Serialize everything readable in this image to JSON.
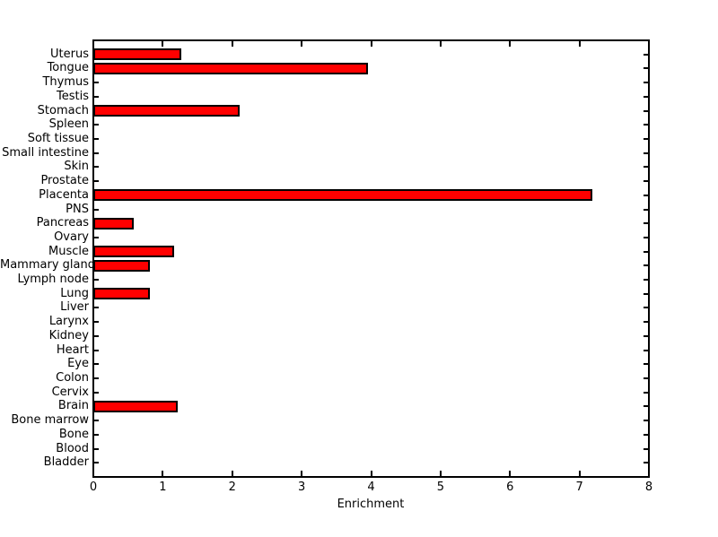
{
  "figure": {
    "background": "#FFFFFF"
  },
  "chart_data": {
    "type": "bar",
    "orientation": "horizontal",
    "title": "",
    "xlabel": "Enrichment",
    "ylabel": "",
    "categories": [
      "Uterus",
      "Tongue",
      "Thymus",
      "Testis",
      "Stomach",
      "Spleen",
      "Soft tissue",
      "Small intestine",
      "Skin",
      "Prostate",
      "Placenta",
      "PNS",
      "Pancreas",
      "Ovary",
      "Muscle",
      "Mammary gland",
      "Lymph node",
      "Lung",
      "Liver",
      "Larynx",
      "Kidney",
      "Heart",
      "Eye",
      "Colon",
      "Cervix",
      "Brain",
      "Bone marrow",
      "Bone",
      "Blood",
      "Bladder"
    ],
    "values": [
      1.27,
      3.95,
      0,
      0,
      2.11,
      0,
      0,
      0,
      0,
      0,
      7.18,
      0,
      0.58,
      0,
      1.16,
      0.81,
      0,
      0.81,
      0,
      0,
      0,
      0,
      0,
      0,
      0,
      1.22,
      0,
      0,
      0,
      0
    ],
    "xlim": [
      0,
      8
    ],
    "xticks": [
      0,
      1,
      2,
      3,
      4,
      5,
      6,
      7,
      8
    ],
    "grid": false,
    "legend": null,
    "bar_color": "#FF0000",
    "bar_edge_color": "#000000",
    "axis_color": "#000000",
    "tick_direction": "in"
  }
}
